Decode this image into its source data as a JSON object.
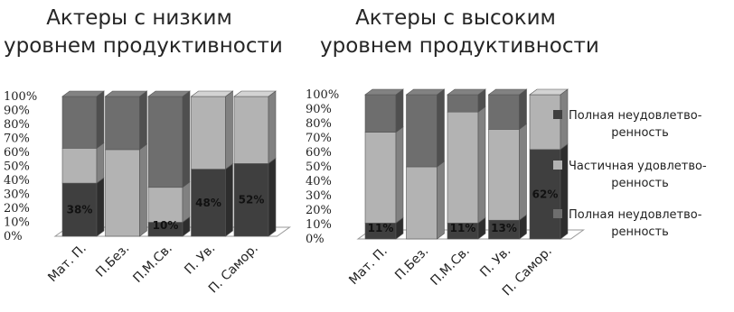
{
  "chart_data": [
    {
      "type": "bar",
      "stacked": true,
      "title_lines": [
        "Актеры с низким",
        "уровнем продуктивности"
      ],
      "categories": [
        "Мат. П.",
        "П.Без.",
        "П.М.Св.",
        "П. Ув.",
        "П. Самор."
      ],
      "series": [
        {
          "name": "Полная неудовлетво-ренность",
          "color": "#3f3f3f",
          "values": [
            38,
            0,
            10,
            48,
            52
          ]
        },
        {
          "name": "Частичная удовлетво-ренность",
          "color": "#b3b3b3",
          "values": [
            25,
            62,
            25,
            52,
            48
          ]
        },
        {
          "name": "Полная неудовлетво-ренность",
          "color": "#6e6e6e",
          "values": [
            37,
            38,
            65,
            0,
            0
          ]
        }
      ],
      "data_labels": [
        "38%",
        "",
        "10%",
        "48%",
        "52%"
      ],
      "yticks": [
        "0%",
        "10%",
        "20%",
        "30%",
        "40%",
        "50%",
        "60%",
        "70%",
        "80%",
        "90%",
        "100%"
      ],
      "ylim": [
        0,
        100
      ]
    },
    {
      "type": "bar",
      "stacked": true,
      "title_lines": [
        "Актеры с высоким",
        "уровнем продуктивности"
      ],
      "categories": [
        "Мат. П.",
        "П.Без.",
        "П.М.Св.",
        "П. Ув.",
        "П. Самор."
      ],
      "series": [
        {
          "name": "Полная неудовлетво-ренность",
          "color": "#3f3f3f",
          "values": [
            11,
            0,
            11,
            13,
            62
          ]
        },
        {
          "name": "Частичная удовлетво-ренность",
          "color": "#b3b3b3",
          "values": [
            63,
            50,
            77,
            63,
            38
          ]
        },
        {
          "name": "Полная неудовлетво-ренность",
          "color": "#6e6e6e",
          "values": [
            26,
            50,
            12,
            24,
            0
          ]
        }
      ],
      "data_labels": [
        "11%",
        "",
        "11%",
        "13%",
        "62%"
      ],
      "yticks": [
        "0%",
        "10%",
        "20%",
        "30%",
        "40%",
        "50%",
        "60%",
        "70%",
        "80%",
        "90%",
        "100%"
      ],
      "ylim": [
        0,
        100
      ]
    }
  ],
  "legend": [
    {
      "lines": [
        "Полная неудовлетво-",
        "ренность"
      ],
      "color": "#3f3f3f"
    },
    {
      "lines": [
        "Частичная удовлетво-",
        "ренность"
      ],
      "color": "#b3b3b3"
    },
    {
      "lines": [
        "Полная неудовлетво-",
        "ренность"
      ],
      "color": "#6e6e6e"
    }
  ]
}
